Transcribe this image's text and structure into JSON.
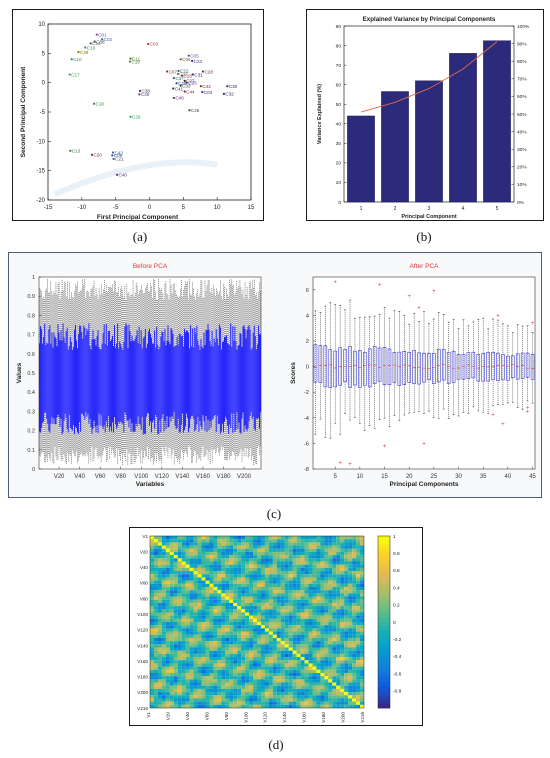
{
  "captions": {
    "a": "(a)",
    "b": "(b)",
    "c": "(c)",
    "d": "(d)"
  },
  "chart_data": [
    {
      "id": "a",
      "type": "scatter",
      "xlabel": "First Principal Component",
      "ylabel": "Second Principal Component",
      "xlim": [
        -15,
        15
      ],
      "ylim": [
        -20,
        10
      ],
      "xticks": [
        -15,
        -10,
        -5,
        0,
        5,
        10,
        15
      ],
      "yticks": [
        -20,
        -15,
        -10,
        -5,
        0,
        5,
        10
      ],
      "points": [
        {
          "label": "C01",
          "x": -7.8,
          "y": 8.2,
          "color": "#7b3f9e"
        },
        {
          "label": "C02",
          "x": -7.0,
          "y": 7.4,
          "color": "#3a6ea5"
        },
        {
          "label": "C08",
          "x": -8.1,
          "y": 7.0,
          "color": "#2f4f4f"
        },
        {
          "label": "C14",
          "x": -8.7,
          "y": 6.7,
          "color": "#555555"
        },
        {
          "label": "C16",
          "x": -9.5,
          "y": 6.0,
          "color": "#3c8a5c"
        },
        {
          "label": "C03",
          "x": -0.2,
          "y": 6.6,
          "color": "#b03a3a"
        },
        {
          "label": "C39",
          "x": -10.5,
          "y": 5.2,
          "color": "#808000"
        },
        {
          "label": "C10",
          "x": -11.5,
          "y": 4.0,
          "color": "#2e8b57"
        },
        {
          "label": "C11",
          "x": -2.8,
          "y": 4.1,
          "color": "#4a7c2a"
        },
        {
          "label": "C19",
          "x": -2.9,
          "y": 3.6,
          "color": "#4a7c2a"
        },
        {
          "label": "C17",
          "x": -11.8,
          "y": 1.4,
          "color": "#3a9a3a"
        },
        {
          "label": "C05",
          "x": 5.8,
          "y": 4.6,
          "color": "#5b4b8a"
        },
        {
          "label": "C06",
          "x": 4.6,
          "y": 4.0,
          "color": "#6b5b3a"
        },
        {
          "label": "C23",
          "x": 6.3,
          "y": 3.7,
          "color": "#3a3a7a"
        },
        {
          "label": "C07",
          "x": 2.6,
          "y": 1.9,
          "color": "#7a3a3a"
        },
        {
          "label": "C22",
          "x": 4.3,
          "y": 2.0,
          "color": "#2a5a9a"
        },
        {
          "label": "C12",
          "x": 4.2,
          "y": 1.5,
          "color": "#5a7a2a"
        },
        {
          "label": "C28",
          "x": 7.9,
          "y": 1.9,
          "color": "#6a2a6a"
        },
        {
          "label": "C31",
          "x": 6.4,
          "y": 1.4,
          "color": "#2a2a6a"
        },
        {
          "label": "C18",
          "x": 4.8,
          "y": 1.2,
          "color": "#8a2a5a"
        },
        {
          "label": "C37",
          "x": 3.6,
          "y": 0.8,
          "color": "#2a6a8a"
        },
        {
          "label": "C27",
          "x": 5.2,
          "y": 0.3,
          "color": "#2a2a2a"
        },
        {
          "label": "C25",
          "x": 5.5,
          "y": 0.0,
          "color": "#5a2a8a"
        },
        {
          "label": "C26",
          "x": 4.0,
          "y": -0.1,
          "color": "#2a4a8a"
        },
        {
          "label": "C33",
          "x": 4.6,
          "y": -0.5,
          "color": "#3a3a3a"
        },
        {
          "label": "C42",
          "x": 7.6,
          "y": -0.6,
          "color": "#8a2a2a"
        },
        {
          "label": "C30",
          "x": 11.5,
          "y": -0.6,
          "color": "#2a2a6a"
        },
        {
          "label": "C41",
          "x": 3.5,
          "y": -1.0,
          "color": "#4a2a6a"
        },
        {
          "label": "C44",
          "x": 5.2,
          "y": -1.5,
          "color": "#7a2a4a"
        },
        {
          "label": "C04",
          "x": 7.8,
          "y": -1.6,
          "color": "#3a2a7a"
        },
        {
          "label": "C32",
          "x": 11.0,
          "y": -1.9,
          "color": "#2a2a5a"
        },
        {
          "label": "C38",
          "x": -1.4,
          "y": -1.4,
          "color": "#5a2a5a"
        },
        {
          "label": "C39",
          "x": -1.5,
          "y": -2.0,
          "color": "#4a4a8a"
        },
        {
          "label": "C46",
          "x": 3.6,
          "y": -2.6,
          "color": "#6a2a6a"
        },
        {
          "label": "C18",
          "x": -8.2,
          "y": -3.6,
          "color": "#3a8a3a"
        },
        {
          "label": "C45",
          "x": 5.9,
          "y": -4.7,
          "color": "#4a4a4a"
        },
        {
          "label": "C29",
          "x": -2.8,
          "y": -5.8,
          "color": "#2a9a5a"
        },
        {
          "label": "C13",
          "x": -11.7,
          "y": -11.6,
          "color": "#3a7a3a"
        },
        {
          "label": "C20",
          "x": -8.5,
          "y": -12.3,
          "color": "#7a2a2a"
        },
        {
          "label": "C43",
          "x": -5.4,
          "y": -11.9,
          "color": "#2a6a9a"
        },
        {
          "label": "C09",
          "x": -5.5,
          "y": -12.4,
          "color": "#3a3a9a"
        },
        {
          "label": "C21",
          "x": -5.3,
          "y": -13.0,
          "color": "#2a5a5a"
        },
        {
          "label": "C40",
          "x": -4.8,
          "y": -15.7,
          "color": "#6a2a8a"
        }
      ]
    },
    {
      "id": "b",
      "type": "bar",
      "title": "Explained Variance by Principal Components",
      "xlabel": "Principal Component",
      "ylabel": "Variance Explained (%)",
      "categories": [
        "1",
        "2",
        "3",
        "4",
        "5"
      ],
      "values": [
        44,
        56.5,
        62,
        76,
        82.5
      ],
      "ylim": [
        0,
        90
      ],
      "yticks": [
        0,
        10,
        20,
        30,
        40,
        50,
        60,
        70,
        80,
        90
      ],
      "y2ticks": [
        "0%",
        "10%",
        "20%",
        "30%",
        "40%",
        "50%",
        "60%",
        "70%",
        "80%",
        "90%",
        "100%"
      ],
      "cumulative_line": [
        46,
        51,
        58,
        68,
        82
      ],
      "colors": {
        "bar": "#2c2a7a",
        "line": "#e06a4a"
      }
    },
    {
      "id": "c-left",
      "type": "boxplot",
      "title": "Before PCA",
      "xlabel": "Variables",
      "ylabel": "Values",
      "ylim": [
        0,
        1
      ],
      "yticks": [
        "0",
        "0.1",
        "0.2",
        "0.3",
        "0.4",
        "0.5",
        "0.6",
        "0.7",
        "0.8",
        "0.9",
        "1"
      ],
      "xticks": [
        "V20",
        "V40",
        "V60",
        "V80",
        "V100",
        "V120",
        "V140",
        "V160",
        "V180",
        "V200"
      ],
      "n_variables": 216,
      "colors": {
        "box": "#1a1aff",
        "whisker": "#333333",
        "title": "#d93a3a"
      }
    },
    {
      "id": "c-right",
      "type": "boxplot",
      "title": "After PCA",
      "xlabel": "Principal Components",
      "ylabel": "Scores",
      "ylim": [
        -8,
        7
      ],
      "yticks": [
        "-8",
        "-6",
        "-4",
        "-2",
        "0",
        "2",
        "4",
        "6"
      ],
      "xticks": [
        "5",
        "10",
        "15",
        "20",
        "25",
        "30",
        "35",
        "40",
        "45"
      ],
      "n_components": 45,
      "colors": {
        "box": "#3a3ad0",
        "whisker": "#333333",
        "outlier": "#e03a3a",
        "title": "#d93a3a"
      }
    },
    {
      "id": "d",
      "type": "heatmap",
      "yticks": [
        "V1",
        "V20",
        "V40",
        "V60",
        "V80",
        "V100",
        "V120",
        "V140",
        "V160",
        "V180",
        "V200",
        "V216"
      ],
      "xticks": [
        "V1",
        "V20",
        "V40",
        "V60",
        "V80",
        "V100",
        "V120",
        "V140",
        "V160",
        "V180",
        "V200",
        "V216"
      ],
      "colorbar_ticks": [
        "1",
        "0.8",
        "0.6",
        "0.4",
        "0.2",
        "0",
        "-0.2",
        "-0.4",
        "-0.6",
        "-0.8"
      ],
      "colormap": "parula"
    }
  ]
}
